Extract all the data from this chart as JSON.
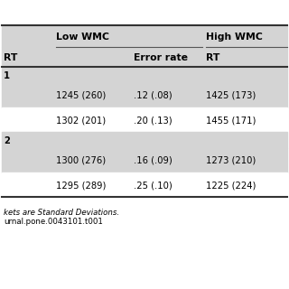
{
  "col_headers_top": [
    "Low WMC",
    "High WMC"
  ],
  "col_headers_sub": [
    "RT",
    "Error rate",
    "RT"
  ],
  "rows": [
    [
      "1245 (260)",
      ".12 (.08)",
      "1425 (173)"
    ],
    [
      "1302 (201)",
      ".20 (.13)",
      "1455 (171)"
    ],
    [
      "1300 (276)",
      ".16 (.09)",
      "1273 (210)"
    ],
    [
      "1295 (289)",
      ".25 (.10)",
      "1225 (224)"
    ]
  ],
  "group_labels": [
    "1",
    "2"
  ],
  "footnote1": "kets are Standard Deviations.",
  "footnote2": "urnal.pone.0043101.t001",
  "bg_shaded": "#d4d4d4",
  "bg_white": "#ffffff",
  "text_color": "#000000",
  "font_size": 7.2,
  "header_font_size": 7.8
}
